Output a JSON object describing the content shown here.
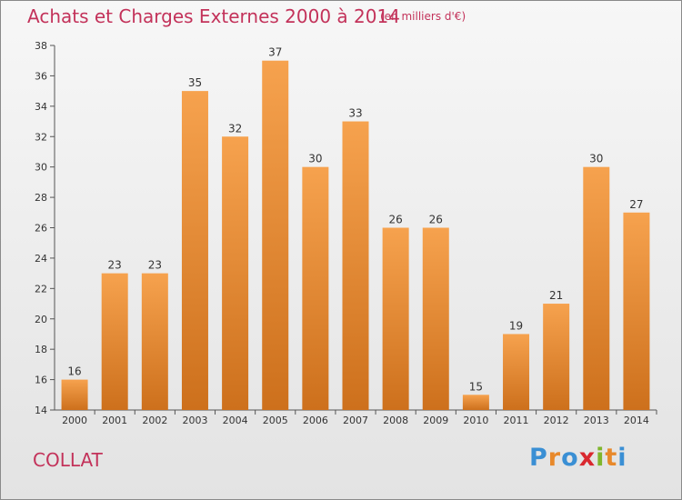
{
  "header": {
    "title": "Achats et Charges Externes 2000 à 2014",
    "unit": "(en milliers d'€)"
  },
  "footer": {
    "place": "COLLAT",
    "logo": [
      "P",
      "r",
      "o",
      "x",
      "i",
      "t",
      "i"
    ],
    "logo_colors": [
      "#3a8fd4",
      "#e8892b",
      "#3a8fd4",
      "#d9282f",
      "#7fb62c",
      "#e8892b",
      "#3a8fd4"
    ]
  },
  "chart_data": {
    "type": "bar",
    "categories": [
      "2000",
      "2001",
      "2002",
      "2003",
      "2004",
      "2005",
      "2006",
      "2007",
      "2008",
      "2009",
      "2010",
      "2011",
      "2012",
      "2013",
      "2014"
    ],
    "values": [
      16,
      23,
      23,
      35,
      32,
      37,
      30,
      33,
      26,
      26,
      15,
      19,
      21,
      30,
      27
    ],
    "yticks": [
      14,
      16,
      18,
      20,
      22,
      24,
      26,
      28,
      30,
      32,
      34,
      36,
      38
    ],
    "ylim": [
      14,
      38
    ],
    "grid": false,
    "bar_color_light": "#f6a24e",
    "bar_color_dark": "#cd701c"
  }
}
